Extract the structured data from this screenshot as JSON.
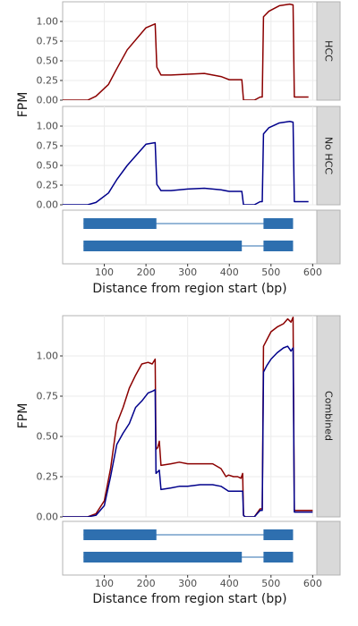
{
  "colors": {
    "hcc": "#8b0000",
    "no_hcc": "#00008b",
    "gene": "#2e6faf",
    "strip_bg": "#d9d9d9",
    "panel_border": "#b3b3b3"
  },
  "chart_data": [
    {
      "type": "line",
      "facets": [
        "HCC",
        "No HCC"
      ],
      "xlabel": "Distance from region start (bp)",
      "ylabel": "FPM",
      "xlim": [
        0,
        610
      ],
      "ylim": [
        0,
        1.25
      ],
      "x_ticks": [
        100,
        200,
        300,
        400,
        500,
        600
      ],
      "y_ticks": [
        0.0,
        0.25,
        0.5,
        0.75,
        1.0
      ],
      "x_tick_labels": [
        "100",
        "200",
        "300",
        "400",
        "500",
        "600"
      ],
      "y_tick_labels": [
        "0.00",
        "0.25",
        "0.50",
        "0.75",
        "1.00"
      ],
      "series": [
        {
          "name": "HCC",
          "facet": "HCC",
          "color": "#8b0000",
          "x": [
            0,
            60,
            80,
            110,
            130,
            155,
            200,
            222,
            226,
            236,
            260,
            300,
            340,
            380,
            400,
            430,
            434,
            438,
            460,
            474,
            476,
            479,
            482,
            495,
            520,
            545,
            553,
            556,
            590
          ],
          "y": [
            0,
            0,
            0.05,
            0.2,
            0.4,
            0.64,
            0.92,
            0.97,
            0.42,
            0.32,
            0.32,
            0.33,
            0.34,
            0.3,
            0.26,
            0.26,
            0.0,
            0.0,
            0.0,
            0.04,
            0.04,
            0.04,
            1.06,
            1.13,
            1.2,
            1.22,
            1.21,
            0.04,
            0.04
          ]
        },
        {
          "name": "No HCC",
          "facet": "No HCC",
          "color": "#00008b",
          "x": [
            0,
            60,
            80,
            110,
            130,
            155,
            200,
            222,
            226,
            236,
            260,
            300,
            340,
            380,
            400,
            430,
            434,
            438,
            460,
            474,
            476,
            479,
            482,
            495,
            520,
            545,
            553,
            556,
            590
          ],
          "y": [
            0,
            0,
            0.03,
            0.15,
            0.32,
            0.5,
            0.77,
            0.79,
            0.26,
            0.18,
            0.18,
            0.2,
            0.21,
            0.19,
            0.17,
            0.17,
            0.0,
            0.0,
            0.0,
            0.04,
            0.04,
            0.04,
            0.9,
            0.98,
            1.04,
            1.06,
            1.05,
            0.04,
            0.04
          ]
        }
      ],
      "gene_tracks": [
        {
          "exons": [
            [
              50,
              225
            ],
            [
              482,
              553
            ]
          ]
        },
        {
          "exons": [
            [
              50,
              430
            ],
            [
              482,
              553
            ]
          ]
        }
      ]
    },
    {
      "type": "line",
      "facets": [
        "Combined"
      ],
      "xlabel": "Distance from region start (bp)",
      "ylabel": "FPM",
      "xlim": [
        0,
        610
      ],
      "ylim": [
        0,
        1.25
      ],
      "x_ticks": [
        100,
        200,
        300,
        400,
        500,
        600
      ],
      "y_ticks": [
        0.0,
        0.25,
        0.5,
        0.75,
        1.0
      ],
      "x_tick_labels": [
        "100",
        "200",
        "300",
        "400",
        "500",
        "600"
      ],
      "y_tick_labels": [
        "0.00",
        "0.25",
        "0.50",
        "0.75",
        "1.00"
      ],
      "series": [
        {
          "name": "HCC",
          "facet": "Combined",
          "color": "#8b0000",
          "x": [
            0,
            60,
            80,
            100,
            115,
            130,
            145,
            160,
            175,
            190,
            205,
            215,
            222,
            224,
            228,
            232,
            236,
            260,
            280,
            300,
            330,
            360,
            380,
            392,
            398,
            410,
            420,
            428,
            432,
            434,
            438,
            460,
            474,
            476,
            479,
            482,
            490,
            500,
            515,
            530,
            540,
            548,
            553,
            556,
            600
          ],
          "y": [
            0,
            0,
            0.02,
            0.1,
            0.3,
            0.58,
            0.68,
            0.8,
            0.88,
            0.95,
            0.96,
            0.95,
            0.98,
            0.42,
            0.43,
            0.47,
            0.32,
            0.33,
            0.34,
            0.33,
            0.33,
            0.33,
            0.3,
            0.25,
            0.26,
            0.25,
            0.25,
            0.24,
            0.27,
            0.01,
            0.0,
            0.0,
            0.05,
            0.05,
            0.05,
            1.06,
            1.1,
            1.15,
            1.18,
            1.2,
            1.23,
            1.21,
            1.24,
            0.04,
            0.04
          ]
        },
        {
          "name": "No HCC",
          "facet": "Combined",
          "color": "#00008b",
          "x": [
            0,
            60,
            80,
            100,
            115,
            130,
            145,
            160,
            175,
            190,
            205,
            215,
            222,
            224,
            228,
            232,
            236,
            260,
            280,
            300,
            330,
            360,
            380,
            392,
            398,
            410,
            420,
            428,
            432,
            434,
            438,
            460,
            474,
            476,
            479,
            482,
            490,
            500,
            515,
            530,
            540,
            548,
            553,
            556,
            600
          ],
          "y": [
            0,
            0,
            0.01,
            0.07,
            0.25,
            0.45,
            0.52,
            0.58,
            0.68,
            0.72,
            0.77,
            0.78,
            0.79,
            0.27,
            0.28,
            0.29,
            0.17,
            0.18,
            0.19,
            0.19,
            0.2,
            0.2,
            0.19,
            0.17,
            0.16,
            0.16,
            0.16,
            0.16,
            0.16,
            0.01,
            0.0,
            0.0,
            0.04,
            0.04,
            0.04,
            0.9,
            0.94,
            0.98,
            1.02,
            1.05,
            1.06,
            1.03,
            1.05,
            0.03,
            0.03
          ]
        }
      ],
      "gene_tracks": [
        {
          "exons": [
            [
              50,
              225
            ],
            [
              482,
              553
            ]
          ]
        },
        {
          "exons": [
            [
              50,
              430
            ],
            [
              482,
              553
            ]
          ]
        }
      ]
    }
  ]
}
